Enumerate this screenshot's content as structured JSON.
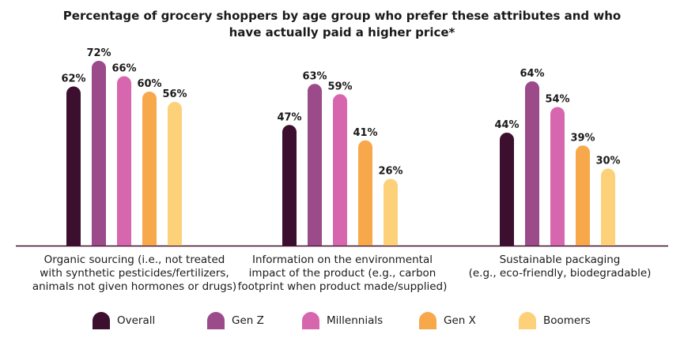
{
  "chart_data": {
    "type": "bar",
    "title_lines": [
      "Percentage of grocery shoppers by age group who prefer these attributes and who",
      "have actually paid a higher price*"
    ],
    "categories": [
      [
        "Organic sourcing (i.e., not treated",
        "with synthetic pesticides/fertilizers,",
        "animals not given hormones or drugs)"
      ],
      [
        "Information on the environmental",
        "impact of the product (e.g., carbon",
        "footprint when product made/supplied)"
      ],
      [
        "Sustainable packaging",
        "(e.g., eco-friendly, biodegradable)"
      ]
    ],
    "series": [
      {
        "name": "Overall",
        "color": "#3d0f2e",
        "values": [
          62,
          47,
          44
        ]
      },
      {
        "name": "Gen Z",
        "color": "#9b4a8a",
        "values": [
          72,
          63,
          64
        ]
      },
      {
        "name": "Millennials",
        "color": "#d667ae",
        "values": [
          66,
          59,
          54
        ]
      },
      {
        "name": "Gen X",
        "color": "#f7a84b",
        "values": [
          60,
          41,
          39
        ]
      },
      {
        "name": "Boomers",
        "color": "#fdd17a",
        "values": [
          56,
          26,
          30
        ]
      }
    ],
    "value_suffix": "%",
    "ylim": [
      0,
      100
    ],
    "axis_color": "#3d0f2e",
    "grid": false,
    "legend_position": "bottom"
  }
}
